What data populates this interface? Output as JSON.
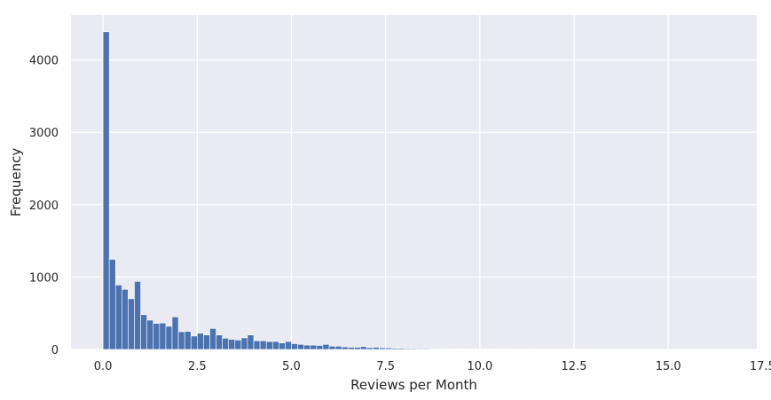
{
  "chart_data": {
    "type": "bar",
    "style": "histogram",
    "title": "",
    "xlabel": "Reviews per Month",
    "ylabel": "Frequency",
    "xlim": [
      -0.85,
      17.35
    ],
    "ylim": [
      0,
      4620
    ],
    "xticks": [
      0.0,
      2.5,
      5.0,
      7.5,
      10.0,
      12.5,
      15.0,
      17.5
    ],
    "xtick_labels": [
      "0.0",
      "2.5",
      "5.0",
      "7.5",
      "10.0",
      "12.5",
      "15.0",
      "17.5"
    ],
    "yticks": [
      0,
      1000,
      2000,
      3000,
      4000
    ],
    "ytick_labels": [
      "0",
      "1000",
      "2000",
      "3000",
      "4000"
    ],
    "grid": true,
    "bin_start": 0.0,
    "bin_width": 0.1667,
    "values": [
      4390,
      1245,
      890,
      830,
      700,
      940,
      480,
      405,
      360,
      365,
      320,
      450,
      245,
      250,
      185,
      225,
      200,
      290,
      200,
      155,
      140,
      130,
      160,
      200,
      120,
      120,
      110,
      110,
      90,
      110,
      80,
      70,
      60,
      60,
      55,
      70,
      45,
      45,
      35,
      30,
      30,
      40,
      25,
      30,
      22,
      20,
      15,
      15,
      12,
      12,
      10,
      10,
      8,
      8,
      7,
      7,
      6,
      6,
      5,
      5,
      5,
      5,
      4,
      4,
      4,
      3,
      3,
      3,
      3,
      3,
      2,
      2,
      2,
      2,
      2,
      2,
      2,
      2,
      1,
      1,
      1,
      1,
      1,
      1,
      1,
      1,
      1,
      1,
      1,
      1,
      1,
      1,
      1,
      1,
      1,
      1,
      1,
      1,
      1,
      1,
      1,
      1,
      1
    ],
    "colors": {
      "bar": "#4c72b0",
      "bar_edge": "#ffffff",
      "plot_background": "#eaeaf2",
      "grid": "#ffffff",
      "text": "#262626"
    }
  }
}
